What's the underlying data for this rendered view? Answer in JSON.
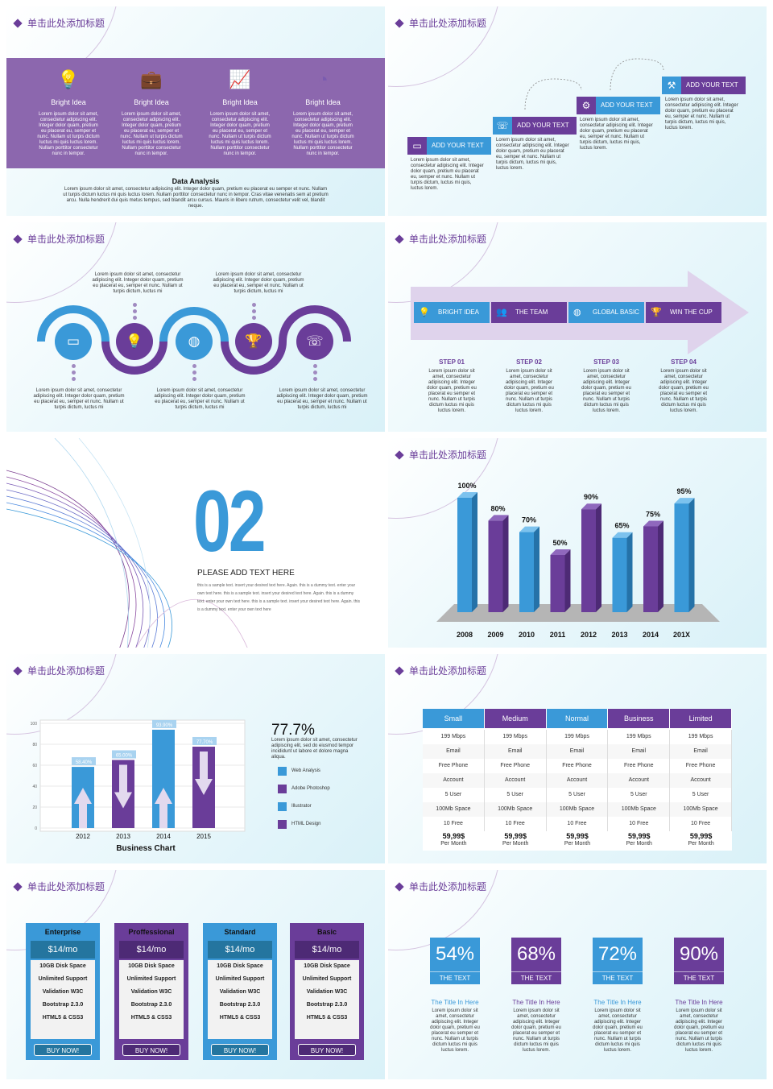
{
  "slide_title": "单击此处添加标题",
  "lorem_short": "Lorem ipsum dolor sit amet, consectetur adipiscing elit. Integer dolor quam, pretium eu placerat eu, semper et nunc. Nullam ut turpis dictum luctus mi quis luctus lorem. Nullam porttitor consectetur nunc in tempor.",
  "lorem_step": "Lorem ipsum dolor sit amet, consectetur adipiscing elit. Integer dolor quam, pretium eu placerat eu, semper et nunc. Nullam ut turpis dictum, luctus mi quis, luctus lorem.",
  "lorem_wave": "Lorem ipsum dolor sit amet, consectetur adipiscing elit. Integer dolor quam, pretium eu placerat eu, semper et nunc. Nullam ut turpis dictum, luctus mi",
  "s1": {
    "labels": [
      "Bright Idea",
      "Bright Idea",
      "Bright Idea",
      "Bright Idea"
    ],
    "analysis_title": "Data Analysis",
    "analysis_text": "Lorem ipsum dolor sit amet, consectetur adipiscing elit. Integer dolor quam, pretium eu placerat eu semper et nunc. Nullam ut turpis dictum luctus mi quis luctus lorem. Nullam porttitor consectetur nunc in tempor. Cras vitae venenatis sem at pretium arcu. Nulla hendrerit dui quis metus tempus, sed blandit arcu cursus. Mauris in libero rutrum, consectetur velit vel, blandit neque."
  },
  "s2": {
    "labels": [
      "ADD YOUR TEXT",
      "ADD YOUR TEXT",
      "ADD YOUR TEXT",
      "ADD YOUR TEXT"
    ]
  },
  "s4": {
    "boxes": [
      "BRIGHT IDEA",
      "THE TEAM",
      "GLOBAL BASIC",
      "WIN THE CUP"
    ],
    "steps": [
      "STEP 01",
      "STEP 02",
      "STEP 03",
      "STEP 04"
    ],
    "step_text": "Lorem ipsum dolor sit amet, consectetur adipiscing elit. Integer dolor quam, pretium eu placerat eu semper et nunc. Nullam ut turpis dictum luctus mi quis luctus lorem."
  },
  "s5": {
    "number": "02",
    "heading": "PLEASE ADD TEXT HERE",
    "text": "this is a sample text. insert your desired text here. Again. this is a dummy text. enter your own text here. this is a sample text. insert your desired text here. Again. this is a dummy text. enter your own text here. this is a sample text. insert your desired text here. Again. this is a dummy text. enter your own text here"
  },
  "chart_data": [
    {
      "type": "bar",
      "categories": [
        "2008",
        "2009",
        "2010",
        "2011",
        "2012",
        "2013",
        "2014",
        "201X"
      ],
      "values": [
        100,
        80,
        70,
        50,
        90,
        65,
        75,
        95
      ],
      "value_labels": [
        "100%",
        "80%",
        "70%",
        "50%",
        "90%",
        "65%",
        "75%",
        "95%"
      ],
      "colors": [
        "#3a99d8",
        "#6a3d99",
        "#3a99d8",
        "#6a3d99",
        "#6a3d99",
        "#3a99d8",
        "#6a3d99",
        "#3a99d8"
      ]
    },
    {
      "type": "bar",
      "title": "Business Chart",
      "categories": [
        "2012",
        "2013",
        "2014",
        "2015"
      ],
      "values": [
        58.4,
        65.0,
        93.9,
        77.7
      ],
      "value_labels": [
        "58.40%",
        "65.00%",
        "93.90%",
        "77.70%"
      ],
      "colors": [
        "#3a99d8",
        "#6a3d99",
        "#3a99d8",
        "#6a3d99"
      ],
      "y_ticks": [
        "0",
        "20",
        "40",
        "60",
        "80",
        "100"
      ],
      "ylim": [
        0,
        100
      ]
    }
  ],
  "s7": {
    "percent": "77.7%",
    "desc": "Lorem ipsum dolor sit amet, consectetur adipiscing elit, sed do eiusmod tempor incididunt ut labore et dolore magna aliqua.",
    "legend": [
      "Web Analysis",
      "Adobe Photoshop",
      "Illustrator",
      "HTML Design"
    ]
  },
  "s8": {
    "headers": [
      "Small",
      "Medium",
      "Normal",
      "Business",
      "Limited"
    ],
    "rows": [
      "199 Mbps",
      "Email",
      "Free Phone",
      "Account",
      "5 User",
      "100Mb Space",
      "10 Free"
    ],
    "price": "59,99$",
    "per": "Per Month"
  },
  "s9": {
    "plans": [
      "Enterprise",
      "Proffessional",
      "Standard",
      "Basic"
    ],
    "price": "$14/mo",
    "features": [
      "10GB Disk Space",
      "Unlimited Support",
      "Validation W3C",
      "Bootstrap 2.3.0",
      "HTML5 & CSS3"
    ],
    "button": "BUY NOW!"
  },
  "s10": {
    "values": [
      "54%",
      "68%",
      "72%",
      "90%"
    ],
    "box_label": "THE TEXT",
    "title": "The Title In Here",
    "text": "Lorem ipsum dolor sit amet, consectetur adipiscing elit. Integer dolor quam, pretium eu placerat eu semper et nunc. Nullam ut turpis dictum luctus mi quis luctus lorem."
  }
}
